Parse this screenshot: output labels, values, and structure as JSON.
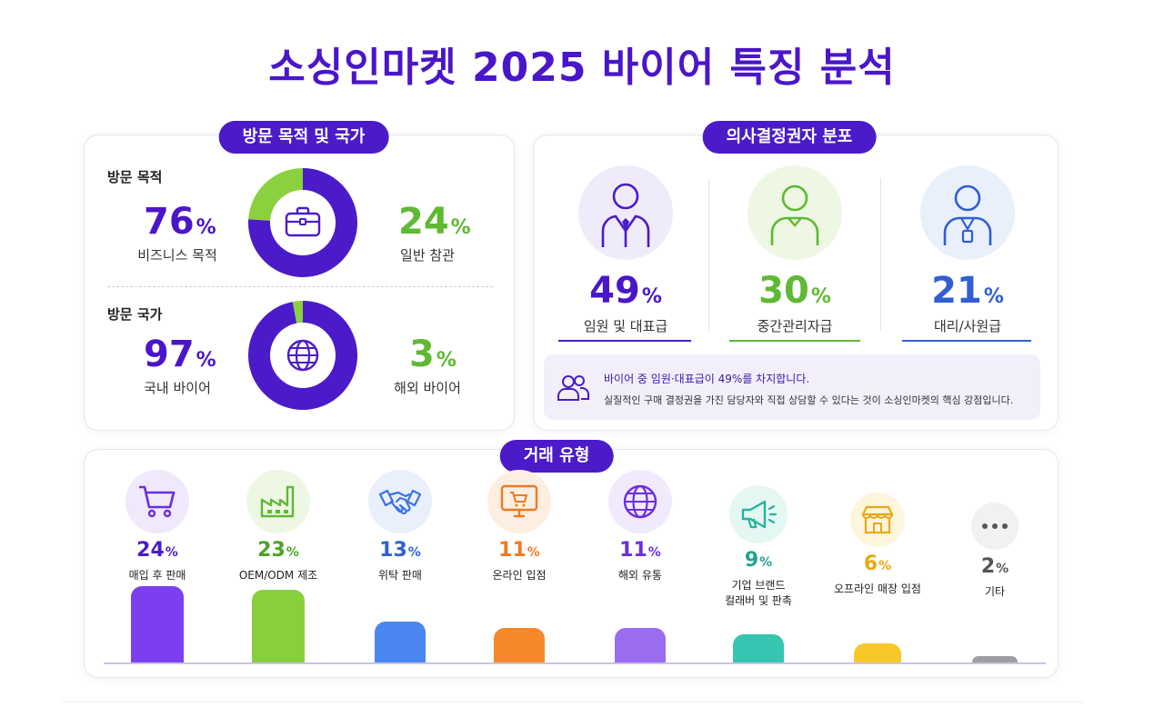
{
  "title": "소싱인마켓 2025 바이어 특징 분석",
  "colors": {
    "purple": "#4b1bc9",
    "green": "#8bd13f",
    "blue": "#2f5fd3",
    "orange": "#f5882a",
    "teal": "#36c5b0",
    "yellow": "#f7c928",
    "gray": "#9e9e9e"
  },
  "visit": {
    "header": "방문 목적 및 국가",
    "purpose": {
      "label": "방문 목적",
      "primary": {
        "value": "76",
        "unit": "%",
        "caption": "비즈니스 목적"
      },
      "secondary": {
        "value": "24",
        "unit": "%",
        "caption": "일반 참관"
      },
      "icon": "briefcase-icon"
    },
    "country": {
      "label": "방문 국가",
      "primary": {
        "value": "97",
        "unit": "%",
        "caption": "국내 바이어"
      },
      "secondary": {
        "value": "3",
        "unit": "%",
        "caption": "해외 바이어"
      },
      "icon": "globe-icon"
    }
  },
  "decision": {
    "header": "의사결정권자 분포",
    "items": [
      {
        "value": "49",
        "unit": "%",
        "caption": "임원 및 대표급",
        "icon": "executive-icon",
        "color": "#4b1bc9"
      },
      {
        "value": "30",
        "unit": "%",
        "caption": "중간관리자급",
        "icon": "manager-icon",
        "color": "#5fb932"
      },
      {
        "value": "21",
        "unit": "%",
        "caption": "대리/사원급",
        "icon": "staff-badge-icon",
        "color": "#2f5fd3"
      }
    ],
    "note": {
      "icon": "people-icon",
      "line1": "바이어 중 임원·대표급이 49%를 차지합니다.",
      "line2": "실질적인 구매 결정권을 가진 담당자와 직접 상담할 수 있다는 것이 소싱인마켓의 핵심 강점입니다."
    }
  },
  "chart_data": [
    {
      "type": "pie",
      "title": "방문 목적",
      "categories": [
        "비즈니스 목적",
        "일반 참관"
      ],
      "values": [
        76,
        24
      ]
    },
    {
      "type": "pie",
      "title": "방문 국가",
      "categories": [
        "국내 바이어",
        "해외 바이어"
      ],
      "values": [
        97,
        3
      ]
    },
    {
      "type": "bar",
      "title": "거래 유형",
      "categories": [
        "매입 후 판매",
        "OEM/ODM 제조",
        "위탁 판매",
        "온라인 입점",
        "해외 유통",
        "기업 브랜드 컬래버 및 판촉",
        "오프라인 매장 입점",
        "기타"
      ],
      "label_lines": [
        [
          "매입 후 판매"
        ],
        [
          "OEM/ODM 제조"
        ],
        [
          "위탁 판매"
        ],
        [
          "온라인 입점"
        ],
        [
          "해외 유통"
        ],
        [
          "기업 브랜드",
          "컬래버 및 판촉"
        ],
        [
          "오프라인 매장 입점"
        ],
        [
          "기타"
        ]
      ],
      "values": [
        24,
        23,
        13,
        11,
        11,
        9,
        6,
        2
      ],
      "unit": "%",
      "colors": [
        "#7b3ff0",
        "#88cf3e",
        "#4a86f0",
        "#f5882a",
        "#9a6cf0",
        "#36c5b0",
        "#f7c928",
        "#9e9e9e"
      ],
      "icons": [
        "cart-icon",
        "factory-icon",
        "handshake-icon",
        "monitor-cart-icon",
        "globe-icon",
        "megaphone-icon",
        "store-icon",
        "more-icon"
      ]
    }
  ]
}
